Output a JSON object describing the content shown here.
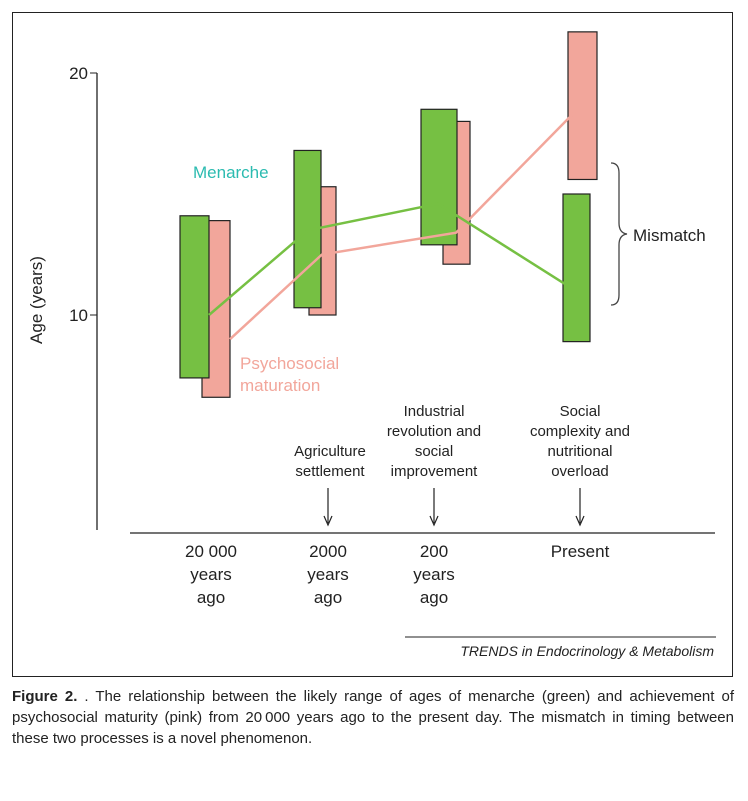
{
  "chart_data": {
    "type": "bar",
    "title": "",
    "ylabel": "Age (years)",
    "ylim": [
      0,
      22
    ],
    "yticks": [
      10,
      20
    ],
    "categories": [
      [
        "20 000",
        "years",
        "ago"
      ],
      [
        "2000",
        "years",
        "ago"
      ],
      [
        "200",
        "years",
        "ago"
      ],
      [
        "Present"
      ]
    ],
    "event_labels": [
      [],
      [
        "Agriculture",
        "settlement"
      ],
      [
        "Industrial",
        "revolution and",
        "social",
        "improvement"
      ],
      [
        "Social",
        "complexity and",
        "nutritional",
        "overload"
      ]
    ],
    "series": [
      {
        "name": "Menarche",
        "color": "#76c043",
        "ranges": [
          [
            7.4,
            14.1
          ],
          [
            10.3,
            16.8
          ],
          [
            12.9,
            18.5
          ],
          [
            8.9,
            15.0
          ]
        ],
        "line": [
          10.0,
          13.5,
          14.6,
          11.2
        ]
      },
      {
        "name": "Psychosocial maturation",
        "color": "#f2a69b",
        "ranges": [
          [
            6.6,
            13.9
          ],
          [
            10.0,
            15.3
          ],
          [
            12.1,
            18.0
          ],
          [
            15.6,
            21.7
          ]
        ],
        "line": [
          9.0,
          12.5,
          13.4,
          18.4
        ]
      }
    ],
    "legend_labels": {
      "menarche": "Menarche",
      "psycho_1": "Psychosocial",
      "psycho_2": "maturation"
    },
    "annotation": "Mismatch",
    "source": "TRENDS in Endocrinology & Metabolism"
  },
  "caption": {
    "label": "Figure 2.",
    "text": " . The relationship between the likely range of ages of menarche (green) and achievement of psychosocial maturity (pink) from 20 000 years ago to the present day. The mismatch in timing between these two processes is a novel phenomenon."
  }
}
